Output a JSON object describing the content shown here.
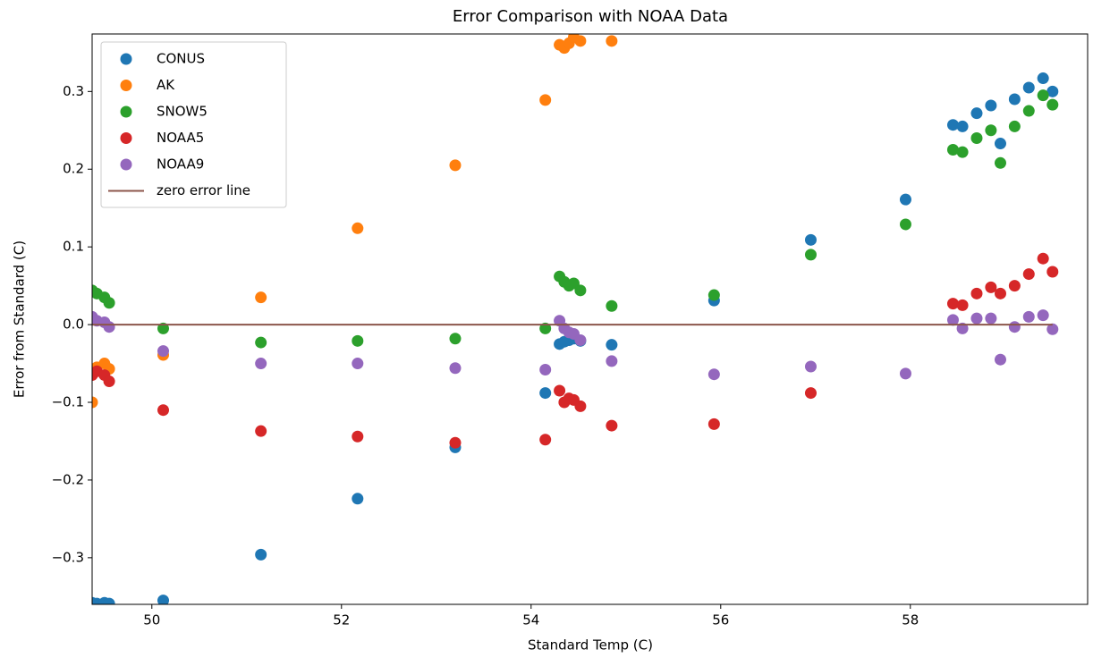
{
  "chart_data": {
    "type": "scatter",
    "title": "Error Comparison with NOAA Data",
    "x_label": "Standard Temp (C)",
    "y_label": "Error from Standard (C)",
    "x": [
      49.37,
      49.42,
      49.5,
      49.55,
      50.12,
      51.15,
      52.17,
      53.2,
      54.15,
      54.3,
      54.35,
      54.4,
      54.45,
      54.52,
      54.85,
      55.93,
      56.95,
      57.95,
      58.45,
      58.55,
      58.7,
      58.85,
      58.95,
      59.1,
      59.25,
      59.4,
      59.5
    ],
    "series": [
      {
        "name": "CONUS",
        "color": "#1f77b4",
        "values": [
          -0.358,
          -0.359,
          -0.358,
          -0.359,
          -0.355,
          -0.296,
          -0.224,
          -0.158,
          -0.088,
          -0.025,
          -0.022,
          -0.02,
          -0.018,
          -0.021,
          -0.026,
          0.031,
          0.109,
          0.161,
          0.257,
          0.255,
          0.272,
          0.282,
          0.233,
          0.29,
          0.305,
          0.317,
          0.3
        ]
      },
      {
        "name": "AK",
        "color": "#ff7f0e",
        "values": [
          -0.1,
          -0.055,
          -0.05,
          -0.057,
          -0.039,
          0.035,
          0.124,
          0.205,
          0.289,
          0.36,
          0.356,
          0.362,
          0.37,
          0.365,
          0.365,
          null,
          null,
          null,
          null,
          null,
          null,
          null,
          null,
          null,
          null,
          null,
          null
        ]
      },
      {
        "name": "SNOW5",
        "color": "#2ca02c",
        "values": [
          0.044,
          0.04,
          0.035,
          0.028,
          -0.005,
          -0.023,
          -0.021,
          -0.018,
          -0.005,
          0.062,
          0.055,
          0.05,
          0.053,
          0.044,
          0.024,
          0.038,
          0.09,
          0.129,
          0.225,
          0.222,
          0.24,
          0.25,
          0.208,
          0.255,
          0.275,
          0.295,
          0.283
        ]
      },
      {
        "name": "NOAA5",
        "color": "#d62728",
        "values": [
          -0.065,
          -0.06,
          -0.065,
          -0.073,
          -0.11,
          -0.137,
          -0.144,
          -0.152,
          -0.148,
          -0.085,
          -0.1,
          -0.095,
          -0.097,
          -0.105,
          -0.13,
          -0.128,
          -0.088,
          null,
          0.027,
          0.025,
          0.04,
          0.048,
          0.04,
          0.05,
          0.065,
          0.085,
          0.068
        ]
      },
      {
        "name": "NOAA9",
        "color": "#9467bd",
        "values": [
          0.01,
          0.005,
          0.003,
          -0.003,
          -0.034,
          -0.05,
          -0.05,
          -0.056,
          -0.058,
          0.005,
          -0.005,
          -0.01,
          -0.012,
          -0.02,
          -0.047,
          -0.064,
          -0.054,
          -0.063,
          0.006,
          -0.005,
          0.008,
          0.008,
          -0.045,
          -0.003,
          0.01,
          0.012,
          -0.006
        ]
      },
      {
        "name": "zero error line",
        "color": "#8c564b",
        "style": "line",
        "x": [
          49.37,
          59.5
        ],
        "values": [
          0,
          0
        ]
      }
    ],
    "xlim": [
      49.37,
      59.87
    ],
    "ylim": [
      -0.36,
      0.374
    ],
    "xticks": [
      50,
      52,
      54,
      56,
      58
    ],
    "yticks": [
      {
        "value": -0.3,
        "label": "−0.3"
      },
      {
        "value": -0.2,
        "label": "−0.2"
      },
      {
        "value": -0.1,
        "label": "−0.1"
      },
      {
        "value": 0,
        "label": "0.0"
      },
      0.1,
      0.2,
      0.3
    ],
    "legend": "upper left"
  }
}
